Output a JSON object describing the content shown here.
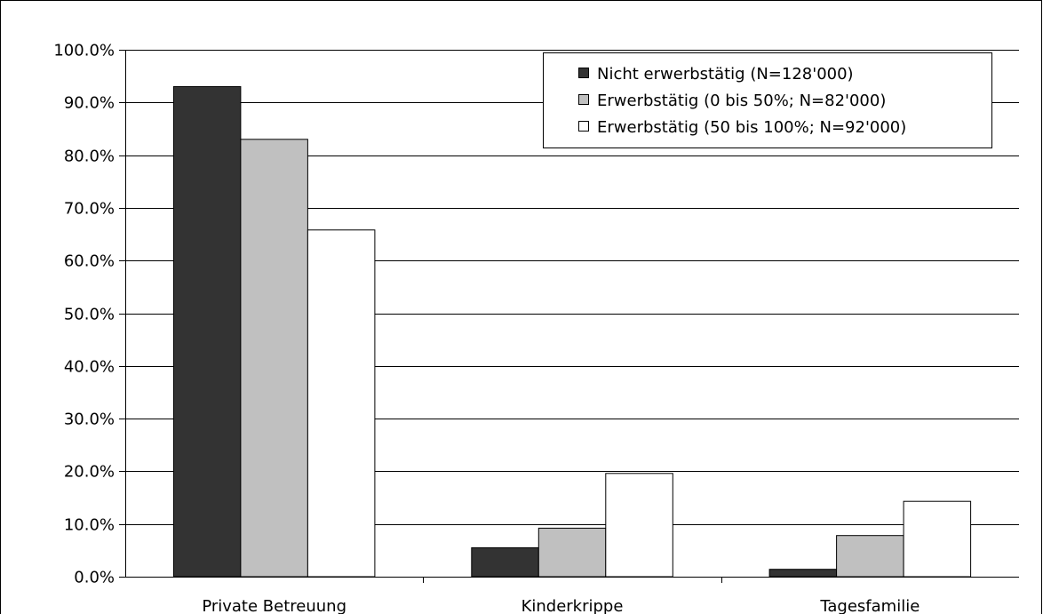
{
  "chart_data": {
    "type": "bar",
    "categories": [
      "Private Betreuung",
      "Kinderkrippe",
      "Tagesfamilie"
    ],
    "series": [
      {
        "name": "Nicht erwerbstätig (N=128'000)",
        "color": "#333333",
        "values": [
          93.0,
          5.5,
          1.4
        ]
      },
      {
        "name": "Erwerbstätig (0 bis 50%; N=82'000)",
        "color": "#c0c0c0",
        "values": [
          83.0,
          9.2,
          7.8
        ]
      },
      {
        "name": "Erwerbstätig (50 bis 100%; N=92'000)",
        "color": "#ffffff",
        "values": [
          65.8,
          19.6,
          14.3
        ]
      }
    ],
    "ylim": [
      0,
      100
    ],
    "yticks": [
      "0.0%",
      "10.0%",
      "20.0%",
      "30.0%",
      "40.0%",
      "50.0%",
      "60.0%",
      "70.0%",
      "80.0%",
      "90.0%",
      "100.0%"
    ],
    "grid": true,
    "legend_position": "top-right",
    "title": "",
    "xlabel": "",
    "ylabel": ""
  }
}
